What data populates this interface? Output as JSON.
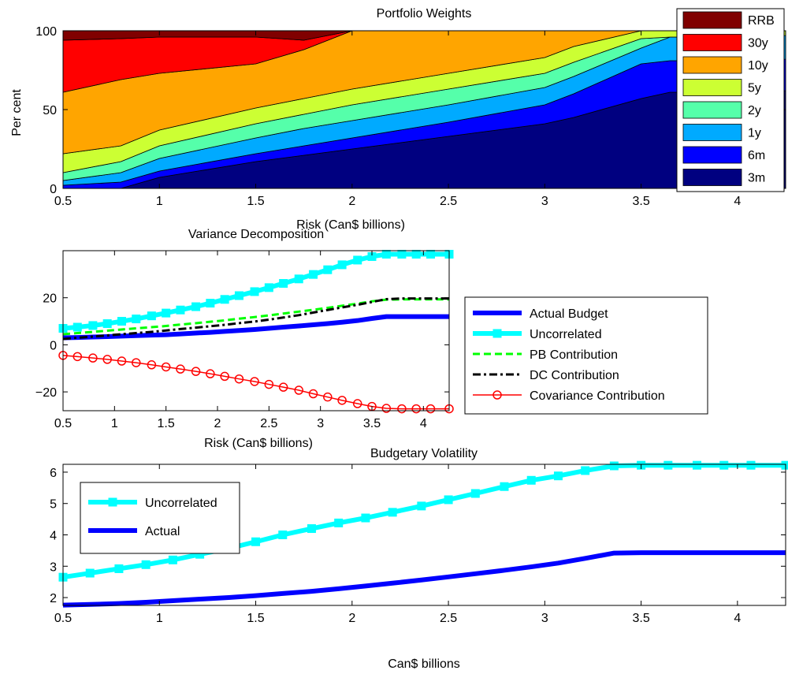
{
  "chart_data": [
    {
      "type": "area",
      "title": "Portfolio Weights",
      "xlabel": "Risk (Can$ billions)",
      "ylabel": "Per cent",
      "xlim": [
        0.5,
        4.25
      ],
      "ylim": [
        0,
        100
      ],
      "xticks": [
        0.5,
        1,
        1.5,
        2,
        2.5,
        3,
        3.5,
        4
      ],
      "yticks": [
        0,
        50,
        100
      ],
      "legend_position": "top-right",
      "x": [
        0.5,
        0.8,
        1.0,
        1.5,
        1.75,
        2.0,
        2.5,
        3.0,
        3.15,
        3.5,
        3.65,
        4.0,
        4.25
      ],
      "series": [
        {
          "name": "3m",
          "color": "#000080",
          "values": [
            0,
            0,
            7,
            17,
            21,
            25,
            33,
            41,
            45,
            57,
            61,
            61,
            62
          ]
        },
        {
          "name": "6m",
          "color": "#0000ff",
          "values": [
            2,
            4,
            4,
            5,
            6,
            7,
            9,
            12,
            15,
            22,
            20,
            20,
            20
          ]
        },
        {
          "name": "1y",
          "color": "#00aaff",
          "values": [
            3,
            6,
            8,
            10,
            11,
            11,
            11,
            11,
            11,
            10,
            15,
            15,
            15
          ]
        },
        {
          "name": "2y",
          "color": "#55ffaa",
          "values": [
            5,
            7,
            8,
            9,
            9,
            10,
            10,
            9,
            9,
            6,
            0,
            0,
            0
          ]
        },
        {
          "name": "5y",
          "color": "#ccff33",
          "values": [
            12,
            10,
            10,
            10,
            10,
            10,
            10,
            10,
            10,
            5,
            4,
            4,
            3
          ]
        },
        {
          "name": "10y",
          "color": "#ffa500",
          "values": [
            39,
            42,
            36,
            28,
            31,
            37,
            27,
            17,
            10,
            0,
            0,
            0,
            0
          ]
        },
        {
          "name": "30y",
          "color": "#ff0000",
          "values": [
            33,
            26,
            23,
            17,
            6,
            0,
            0,
            0,
            0,
            0,
            0,
            0,
            0
          ]
        },
        {
          "name": "RRB",
          "color": "#800000",
          "values": [
            6,
            5,
            4,
            4,
            6,
            0,
            0,
            0,
            0,
            0,
            0,
            0,
            0
          ]
        }
      ]
    },
    {
      "type": "line",
      "title": "Variance Decomposition",
      "xlabel": "Risk (Can$ billions)",
      "ylabel": "",
      "xlim": [
        0.5,
        4.25
      ],
      "ylim": [
        -28,
        40
      ],
      "xticks": [
        0.5,
        1,
        1.5,
        2,
        2.5,
        3,
        3.5,
        4
      ],
      "yticks": [
        -20,
        0,
        20
      ],
      "legend_position": "right-outside",
      "x": [
        0.5,
        0.64,
        0.79,
        0.93,
        1.07,
        1.21,
        1.36,
        1.5,
        1.64,
        1.79,
        1.93,
        2.07,
        2.21,
        2.36,
        2.5,
        2.64,
        2.79,
        2.93,
        3.07,
        3.21,
        3.36,
        3.5,
        3.64,
        3.79,
        3.93,
        4.07,
        4.25
      ],
      "series": [
        {
          "name": "Actual Budget",
          "color": "#0000ff",
          "style": "solid-thick",
          "values": [
            3.0,
            3.1,
            3.3,
            3.5,
            3.7,
            3.9,
            4.1,
            4.3,
            4.6,
            5.0,
            5.3,
            5.7,
            6.1,
            6.5,
            7.0,
            7.5,
            8.0,
            8.5,
            9.0,
            9.6,
            10.3,
            11.2,
            12.0,
            12.0,
            12.0,
            12.0,
            12.0
          ]
        },
        {
          "name": "Uncorrelated",
          "color": "#00ffff",
          "style": "solid-thick-square",
          "values": [
            7,
            7.5,
            8.2,
            9.0,
            10.0,
            11.0,
            12.3,
            13.5,
            14.8,
            16.2,
            17.7,
            19.3,
            20.9,
            22.6,
            24.3,
            26.1,
            28.0,
            29.9,
            31.9,
            34.0,
            36.0,
            37.5,
            38.5,
            38.5,
            38.5,
            38.5,
            38.5
          ]
        },
        {
          "name": "PB Contribution",
          "color": "#00ff00",
          "style": "dashed",
          "values": [
            4.5,
            5.0,
            5.5,
            6.0,
            6.5,
            7.0,
            7.5,
            8.0,
            8.6,
            9.2,
            9.8,
            10.4,
            11.1,
            11.8,
            12.5,
            13.3,
            14.1,
            14.9,
            15.7,
            16.6,
            17.5,
            18.5,
            19.2,
            19.3,
            19.3,
            19.3,
            19.3
          ]
        },
        {
          "name": "DC Contribution",
          "color": "#000000",
          "style": "dashdot",
          "values": [
            2.5,
            3.0,
            3.5,
            4.0,
            4.5,
            5.0,
            5.5,
            6.1,
            6.7,
            7.3,
            7.9,
            8.5,
            9.2,
            9.9,
            10.7,
            11.6,
            12.6,
            13.7,
            14.8,
            15.9,
            17.0,
            18.2,
            19.4,
            19.7,
            19.7,
            19.7,
            19.7
          ]
        },
        {
          "name": "Covariance Contribution",
          "color": "#ff0000",
          "style": "solid-circle",
          "values": [
            -4.5,
            -5.0,
            -5.6,
            -6.2,
            -6.9,
            -7.6,
            -8.5,
            -9.4,
            -10.3,
            -11.3,
            -12.3,
            -13.4,
            -14.5,
            -15.6,
            -16.8,
            -18.0,
            -19.3,
            -20.8,
            -22.2,
            -23.6,
            -25.0,
            -26.2,
            -27.0,
            -27.2,
            -27.2,
            -27.2,
            -27.2
          ]
        }
      ]
    },
    {
      "type": "line",
      "title": "Budgetary Volatility",
      "xlabel": "Can$ billions",
      "ylabel": "",
      "xlim": [
        0.5,
        4.25
      ],
      "ylim": [
        1.75,
        6.25
      ],
      "xticks": [
        0.5,
        1,
        1.5,
        2,
        2.5,
        3,
        3.5,
        4
      ],
      "yticks": [
        2,
        3,
        4,
        5,
        6
      ],
      "legend_position": "top-left",
      "x": [
        0.5,
        0.64,
        0.79,
        0.93,
        1.07,
        1.21,
        1.36,
        1.5,
        1.64,
        1.79,
        1.93,
        2.07,
        2.21,
        2.36,
        2.5,
        2.64,
        2.79,
        2.93,
        3.07,
        3.21,
        3.36,
        3.5,
        3.64,
        3.79,
        3.93,
        4.07,
        4.25
      ],
      "series": [
        {
          "name": "Uncorrelated",
          "color": "#00ffff",
          "style": "solid-thick-square",
          "values": [
            2.65,
            2.78,
            2.92,
            3.05,
            3.2,
            3.38,
            3.57,
            3.78,
            4.0,
            4.2,
            4.38,
            4.54,
            4.72,
            4.92,
            5.12,
            5.32,
            5.54,
            5.74,
            5.88,
            6.05,
            6.2,
            6.22,
            6.22,
            6.22,
            6.22,
            6.22,
            6.22
          ]
        },
        {
          "name": "Actual",
          "color": "#0000ff",
          "style": "solid-thick",
          "values": [
            1.76,
            1.78,
            1.81,
            1.85,
            1.9,
            1.95,
            2.0,
            2.06,
            2.13,
            2.2,
            2.28,
            2.37,
            2.46,
            2.56,
            2.66,
            2.76,
            2.87,
            2.98,
            3.1,
            3.25,
            3.42,
            3.43,
            3.43,
            3.43,
            3.43,
            3.43,
            3.43
          ]
        }
      ]
    }
  ]
}
